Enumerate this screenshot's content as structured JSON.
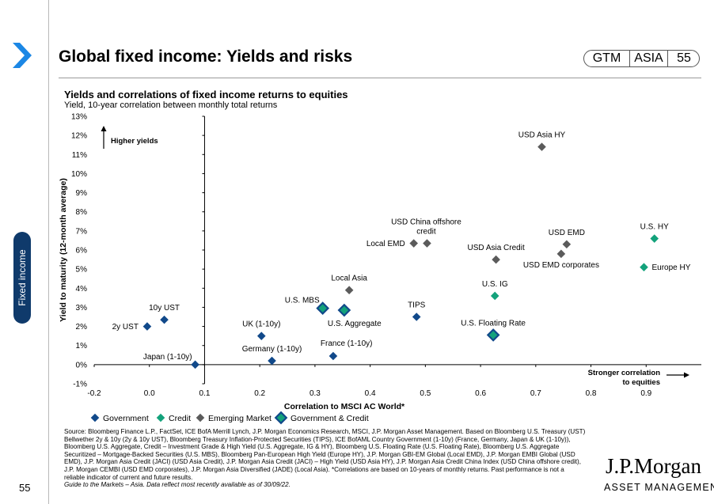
{
  "header": {
    "title": "Global fixed income: Yields and risks",
    "gtm": "GTM",
    "region": "ASIA",
    "page": "55"
  },
  "side_tab": {
    "label": "Fixed income"
  },
  "footer": {
    "source": "Source: Bloomberg Finance L.P., FactSet, ICE BofA Merrill Lynch, J.P. Morgan Economics Research, MSCI, J.P. Morgan Asset Management. Based on Bloomberg U.S. Treasury (UST) Bellwether 2y & 10y (2y & 10y UST), Bloomberg Treasury Inflation-Protected Securities (TIPS), ICE BofAML Country Government (1-10y) (France, Germany, Japan & UK (1-10y)), Bloomberg U.S. Aggregate, Credit – Investment Grade & High Yield (U.S. Aggregate, IG & HY), Bloomberg U.S. Floating Rate (U.S. Floating Rate), Bloomberg U.S. Aggregate Securitized – Mortgage-Backed Securities (U.S. MBS), Bloomberg Pan-European High Yield (Europe HY), J.P. Morgan GBI-EM Global (Local EMD), J.P. Morgan EMBI Global (USD EMD), J.P. Morgan Asia Credit (JACI) (USD Asia Credit), J.P. Morgan Asia Credit (JACI) – High Yield (USD Asia HY), J.P. Morgan Asia Credit China Index (USD China offshore credit), J.P. Morgan CEMBI (USD EMD corporates), J.P. Morgan Asia Diversified (JADE) (Local Asia). *Correlations are based on 10-years of monthly returns. Past performance is not a reliable indicator of current and future results.",
    "guide": "Guide to the Markets – Asia. Data reflect most recently available as of 30/09/22.",
    "page_number": "55",
    "logo_main": "J.P.Morgan",
    "logo_sub": "ASSET MANAGEMENT"
  },
  "chart_data": {
    "type": "scatter",
    "title": "Yields and correlations of fixed income returns to equities",
    "subtitle": "Yield, 10-year correlation between monthly total returns",
    "xlabel": "Correlation to MSCI AC World*",
    "ylabel": "Yield to maturity (12-month average)",
    "xlim": [
      -0.2,
      0.9
    ],
    "ylim": [
      -1,
      13
    ],
    "x_ticks": [
      "-0.2",
      "0.0",
      "0.1",
      "0.2",
      "0.3",
      "0.4",
      "0.5",
      "0.6",
      "0.7",
      "0.8",
      "0.9"
    ],
    "y_ticks": [
      "-1%",
      "0%",
      "1%",
      "2%",
      "3%",
      "4%",
      "5%",
      "6%",
      "7%",
      "8%",
      "9%",
      "10%",
      "11%",
      "12%",
      "13%"
    ],
    "annotations": {
      "higher_yields": "Higher yields",
      "stronger_correlation_line1": "Stronger correlation",
      "stronger_correlation_line2": "to equities"
    },
    "legend": [
      {
        "name": "Government",
        "category": "government"
      },
      {
        "name": "Credit",
        "category": "credit"
      },
      {
        "name": "Emerging Market",
        "category": "em"
      },
      {
        "name": "Government & Credit",
        "category": "govcredit"
      }
    ],
    "colors": {
      "government": "#11498a",
      "credit": "#13a27b",
      "em": "#5b5b5b",
      "govcredit_fill": "#13a27b",
      "govcredit_border": "#11498a",
      "axis": "#000000"
    },
    "points": [
      {
        "label": "2y UST",
        "x": -0.104,
        "y": 2.0,
        "category": "government",
        "label_pos": "left"
      },
      {
        "label": "10y UST",
        "x": -0.073,
        "y": 2.35,
        "category": "government",
        "label_pos": "above"
      },
      {
        "label": "Japan (1-10y)",
        "x": -0.017,
        "y": 0.0,
        "category": "government",
        "label_pos": "upper-left"
      },
      {
        "label": "UK (1-10y)",
        "x": 0.103,
        "y": 1.5,
        "category": "government",
        "label_pos": "above"
      },
      {
        "label": "Germany (1-10y)",
        "x": 0.122,
        "y": 0.2,
        "category": "government",
        "label_pos": "above"
      },
      {
        "label": "France (1-10y)",
        "x": 0.233,
        "y": 0.45,
        "category": "government",
        "label_pos": "above-right"
      },
      {
        "label": "TIPS",
        "x": 0.384,
        "y": 2.5,
        "category": "government",
        "label_pos": "above"
      },
      {
        "label": "U.S. MBS",
        "x": 0.214,
        "y": 2.95,
        "category": "govcredit",
        "label_pos": "upper-left"
      },
      {
        "label": "U.S. Aggregate",
        "x": 0.253,
        "y": 2.85,
        "category": "govcredit",
        "label_pos": "below-right"
      },
      {
        "label": "U.S. Floating Rate",
        "x": 0.523,
        "y": 1.55,
        "category": "govcredit",
        "label_pos": "above"
      },
      {
        "label": "U.S. IG",
        "x": 0.526,
        "y": 3.6,
        "category": "credit",
        "label_pos": "above"
      },
      {
        "label": "U.S. HY",
        "x": 0.815,
        "y": 6.6,
        "category": "credit",
        "label_pos": "above"
      },
      {
        "label": "Europe HY",
        "x": 0.796,
        "y": 5.1,
        "category": "credit",
        "label_pos": "right"
      },
      {
        "label": "Local Asia",
        "x": 0.262,
        "y": 3.9,
        "category": "em",
        "label_pos": "above"
      },
      {
        "label": "Local EMD",
        "x": 0.379,
        "y": 6.35,
        "category": "em",
        "label_pos": "left"
      },
      {
        "label": "USD China offshore credit",
        "x": 0.403,
        "y": 6.35,
        "category": "em",
        "label_pos": "above-two-line"
      },
      {
        "label": "USD Asia Credit",
        "x": 0.528,
        "y": 5.5,
        "category": "em",
        "label_pos": "above"
      },
      {
        "label": "USD Asia HY",
        "x": 0.611,
        "y": 11.4,
        "category": "em",
        "label_pos": "above"
      },
      {
        "label": "USD EMD",
        "x": 0.656,
        "y": 6.3,
        "category": "em",
        "label_pos": "above"
      },
      {
        "label": "USD EMD corporates",
        "x": 0.646,
        "y": 5.8,
        "category": "em",
        "label_pos": "below"
      }
    ]
  }
}
